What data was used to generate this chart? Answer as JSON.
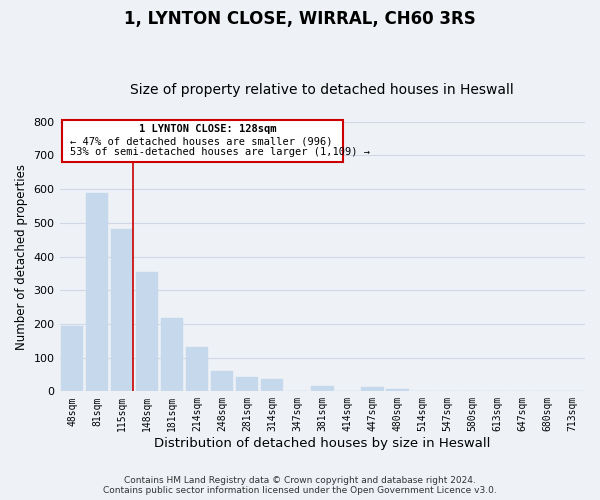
{
  "title": "1, LYNTON CLOSE, WIRRAL, CH60 3RS",
  "subtitle": "Size of property relative to detached houses in Heswall",
  "xlabel": "Distribution of detached houses by size in Heswall",
  "ylabel": "Number of detached properties",
  "categories": [
    "48sqm",
    "81sqm",
    "115sqm",
    "148sqm",
    "181sqm",
    "214sqm",
    "248sqm",
    "281sqm",
    "314sqm",
    "347sqm",
    "381sqm",
    "414sqm",
    "447sqm",
    "480sqm",
    "514sqm",
    "547sqm",
    "580sqm",
    "613sqm",
    "647sqm",
    "680sqm",
    "713sqm"
  ],
  "values": [
    193,
    588,
    481,
    355,
    217,
    133,
    61,
    44,
    36,
    0,
    17,
    0,
    12,
    8,
    0,
    0,
    0,
    0,
    0,
    0,
    0
  ],
  "bar_color": "#c6d9ec",
  "ylim": [
    0,
    800
  ],
  "yticks": [
    0,
    100,
    200,
    300,
    400,
    500,
    600,
    700,
    800
  ],
  "red_line_after_index": 2,
  "annotation_title": "1 LYNTON CLOSE: 128sqm",
  "annotation_line1": "← 47% of detached houses are smaller (996)",
  "annotation_line2": "53% of semi-detached houses are larger (1,109) →",
  "footer_line1": "Contains HM Land Registry data © Crown copyright and database right 2024.",
  "footer_line2": "Contains public sector information licensed under the Open Government Licence v3.0.",
  "background_color": "#eef2f7",
  "grid_color": "#d0d8e8",
  "title_fontsize": 12,
  "subtitle_fontsize": 10,
  "xlabel_fontsize": 9.5,
  "ylabel_fontsize": 8.5,
  "tick_fontsize": 7,
  "footer_fontsize": 6.5
}
